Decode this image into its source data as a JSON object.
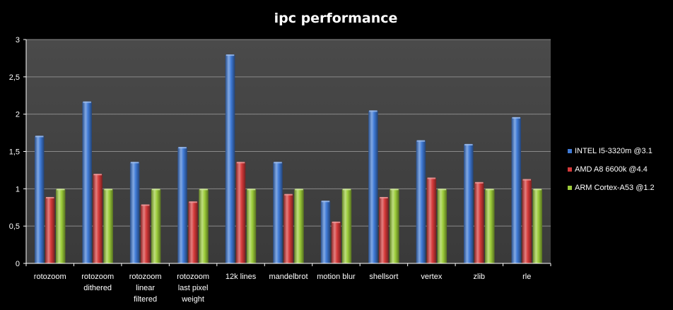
{
  "chart_data": {
    "type": "bar",
    "title": "ipc performance",
    "xlabel": "",
    "ylabel": "",
    "ylim": [
      0,
      3
    ],
    "yticks": [
      0,
      0.5,
      1,
      1.5,
      2,
      2.5,
      3
    ],
    "ytick_labels": [
      "0",
      "0,5",
      "1",
      "1,5",
      "2",
      "2,5",
      "3"
    ],
    "grid": true,
    "legend_position": "right",
    "categories": [
      [
        "rotozoom"
      ],
      [
        "rotozoom",
        "dithered"
      ],
      [
        "rotozoom",
        "linear",
        "filtered"
      ],
      [
        "rotozoom",
        "last pixel",
        "weight"
      ],
      [
        "12k lines"
      ],
      [
        "mandelbrot"
      ],
      [
        "motion blur"
      ],
      [
        "shellsort"
      ],
      [
        "vertex"
      ],
      [
        "zlib"
      ],
      [
        "rle"
      ]
    ],
    "series": [
      {
        "name": "INTEL I5-3320m @3.1",
        "color": "#3f7ad6",
        "values": [
          1.71,
          2.17,
          1.36,
          1.56,
          2.8,
          1.36,
          0.84,
          2.05,
          1.65,
          1.6,
          1.96
        ]
      },
      {
        "name": "AMD A8 6600k @4.4",
        "color": "#d63a3a",
        "values": [
          0.89,
          1.2,
          0.79,
          0.83,
          1.36,
          0.93,
          0.56,
          0.89,
          1.15,
          1.09,
          1.13
        ]
      },
      {
        "name": "ARM Cortex-A53 @1.2",
        "color": "#9ccc3a",
        "values": [
          1.0,
          1.0,
          1.0,
          1.0,
          1.0,
          1.0,
          1.0,
          1.0,
          1.0,
          1.0,
          1.0
        ]
      }
    ]
  }
}
